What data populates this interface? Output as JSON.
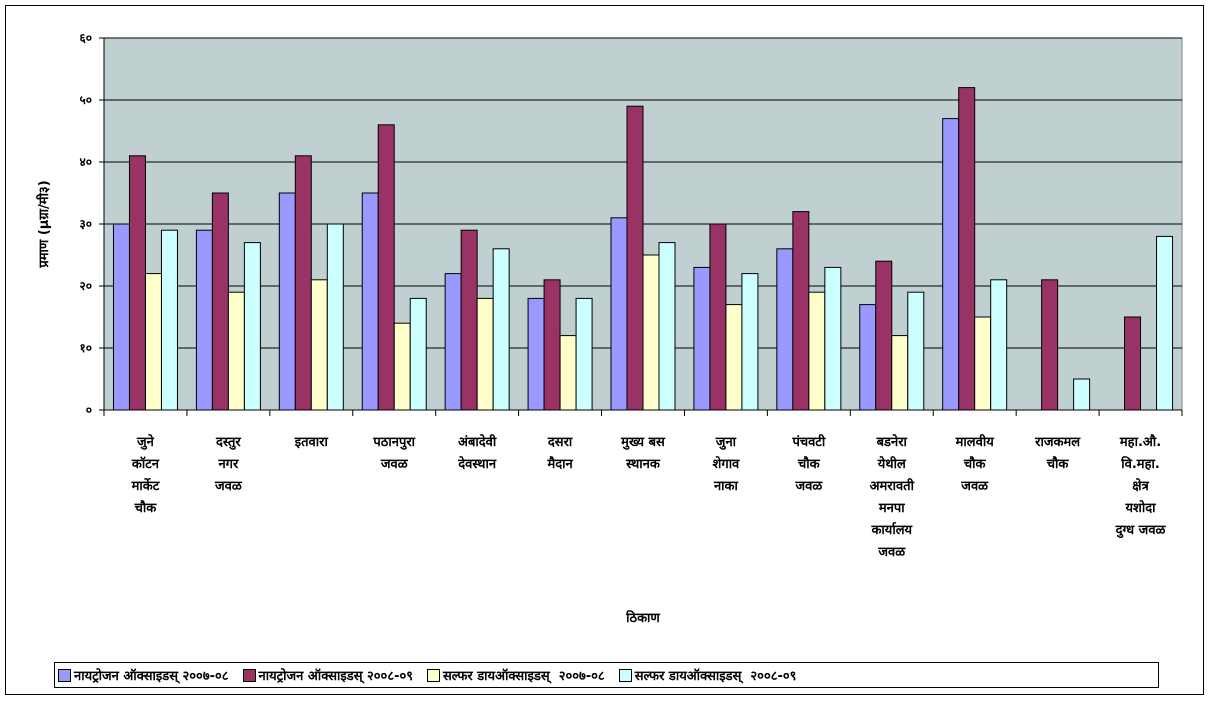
{
  "chart_data": {
    "type": "bar",
    "xlabel": "ठिकाण",
    "ylabel": "प्रमाण (µग्रा/मी३)",
    "ylim": [
      0,
      60
    ],
    "yticks": [
      0,
      10,
      20,
      30,
      40,
      50,
      60
    ],
    "ytick_labels": [
      "०",
      "१०",
      "२०",
      "३०",
      "४०",
      "५०",
      "६०"
    ],
    "grid": true,
    "legend_position": "bottom",
    "plot_background": "#c0d0d0",
    "categories": [
      [
        "जुने",
        "कॉटन",
        "मार्केट",
        "चौक"
      ],
      [
        "दस्तुर",
        "नगर",
        "जवळ"
      ],
      [
        "इतवारा"
      ],
      [
        "पठानपुरा",
        "जवळ"
      ],
      [
        "अंबादेवी",
        "देवस्थान"
      ],
      [
        "दसरा",
        "मैदान"
      ],
      [
        "मुख्य बस",
        "स्थानक"
      ],
      [
        "जुना",
        "शेगाव",
        "नाका"
      ],
      [
        "पंचवटी",
        "चौक",
        "जवळ"
      ],
      [
        "बडनेरा",
        "येथील",
        "अमरावती",
        "मनपा",
        "कार्यालय",
        "जवळ"
      ],
      [
        "मालवीय",
        "चौक",
        "जवळ"
      ],
      [
        "राजकमल",
        "चौक"
      ],
      [
        "महा.औ.",
        "वि.महा.",
        "क्षेत्र",
        "यशोदा",
        "दुग्ध जवळ"
      ]
    ],
    "series": [
      {
        "name": "नायट्रोजन ऑक्साइडस् २००७-०८",
        "color": "#9999ff",
        "values": [
          30,
          29,
          35,
          35,
          22,
          18,
          31,
          23,
          26,
          17,
          47,
          null,
          null
        ]
      },
      {
        "name": "नायट्रोजन ऑक्साइडस् २००८-०९",
        "color": "#993366",
        "values": [
          41,
          35,
          41,
          46,
          29,
          21,
          49,
          30,
          32,
          24,
          52,
          21,
          15
        ]
      },
      {
        "name": "सल्फर डायऑक्साइडस्  २००७-०८",
        "color": "#ffffcc",
        "values": [
          22,
          19,
          21,
          14,
          18,
          12,
          25,
          17,
          19,
          12,
          15,
          null,
          null
        ]
      },
      {
        "name": "सल्फर डायऑक्साइडस्  २००८-०९",
        "color": "#ccffff",
        "values": [
          29,
          27,
          30,
          18,
          26,
          18,
          27,
          22,
          23,
          19,
          21,
          5,
          28
        ]
      }
    ]
  }
}
